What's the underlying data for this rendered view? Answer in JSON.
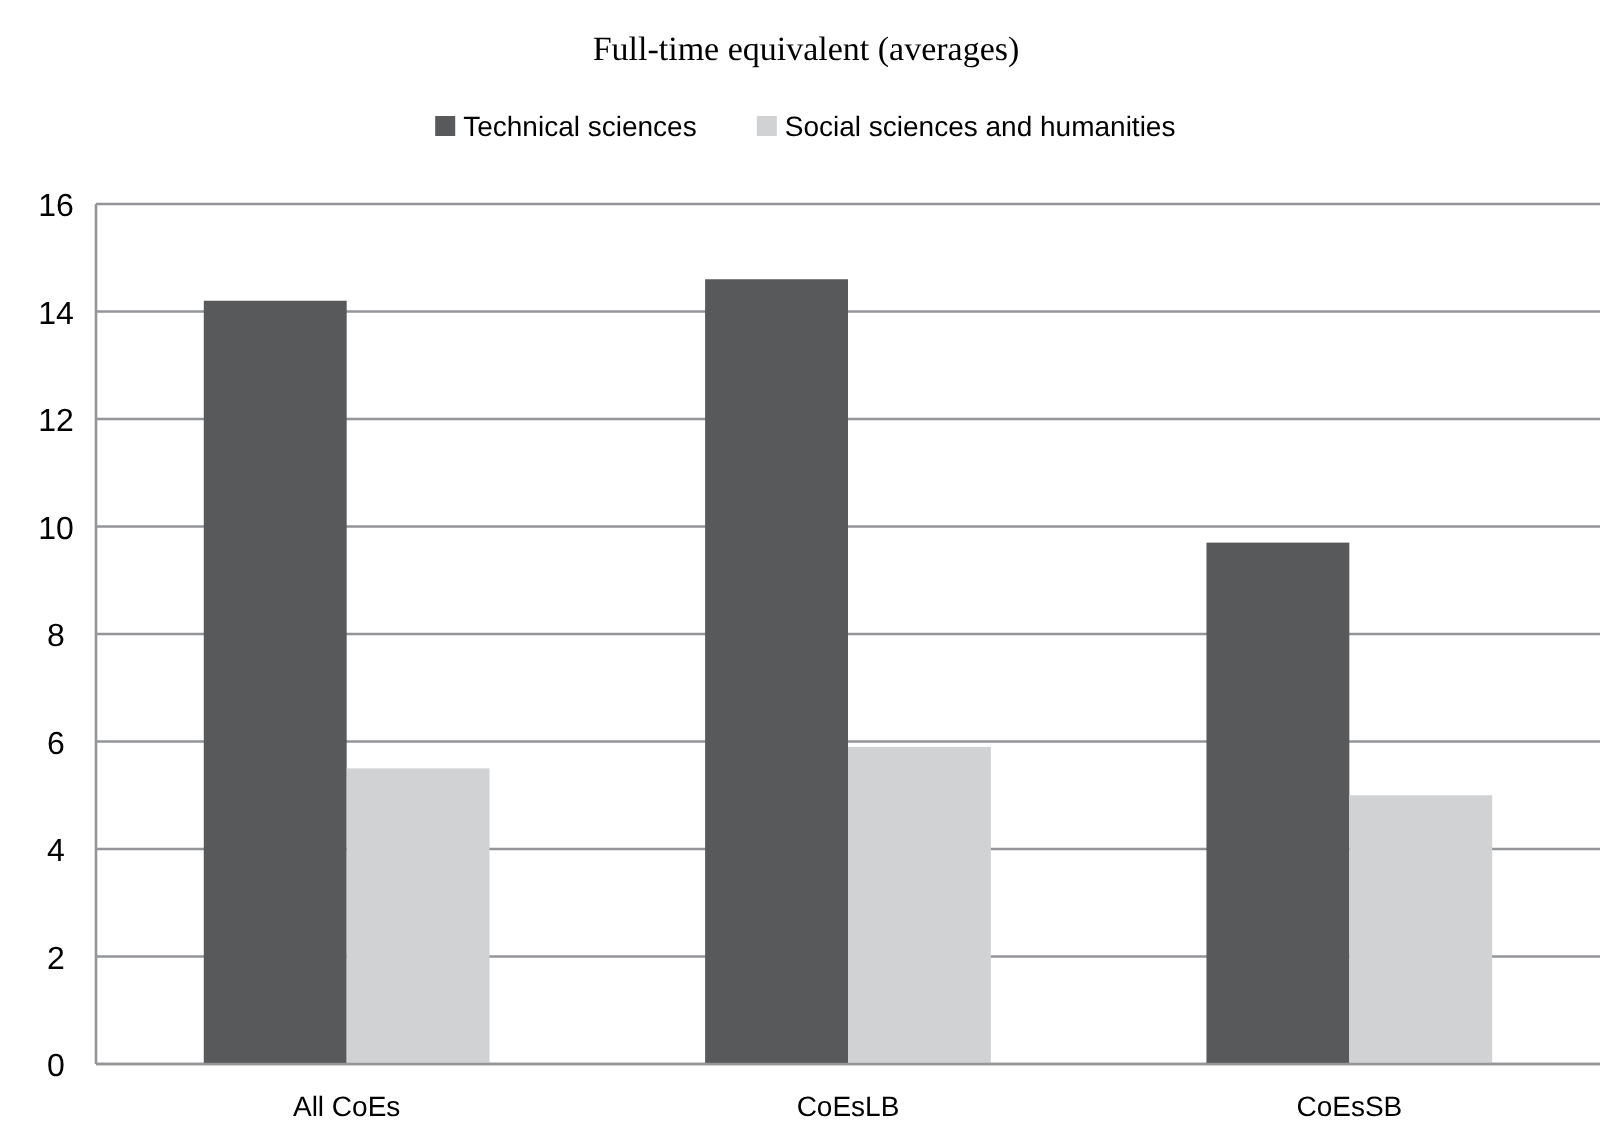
{
  "chart_data": {
    "type": "bar",
    "title": "Full-time equivalent (averages)",
    "categories": [
      "All CoEs",
      "CoEsLB",
      "CoEsSB"
    ],
    "series": [
      {
        "name": "Technical sciences",
        "color": "#58595b",
        "values": [
          14.2,
          14.6,
          9.7
        ]
      },
      {
        "name": "Social sciences and humanities",
        "color": "#d1d2d4",
        "values": [
          5.5,
          5.9,
          5.0
        ]
      }
    ],
    "ylim": [
      0,
      16
    ],
    "yticks": [
      0,
      2,
      4,
      6,
      8,
      10,
      12,
      14,
      16
    ],
    "grid": "y",
    "legend": "top"
  }
}
